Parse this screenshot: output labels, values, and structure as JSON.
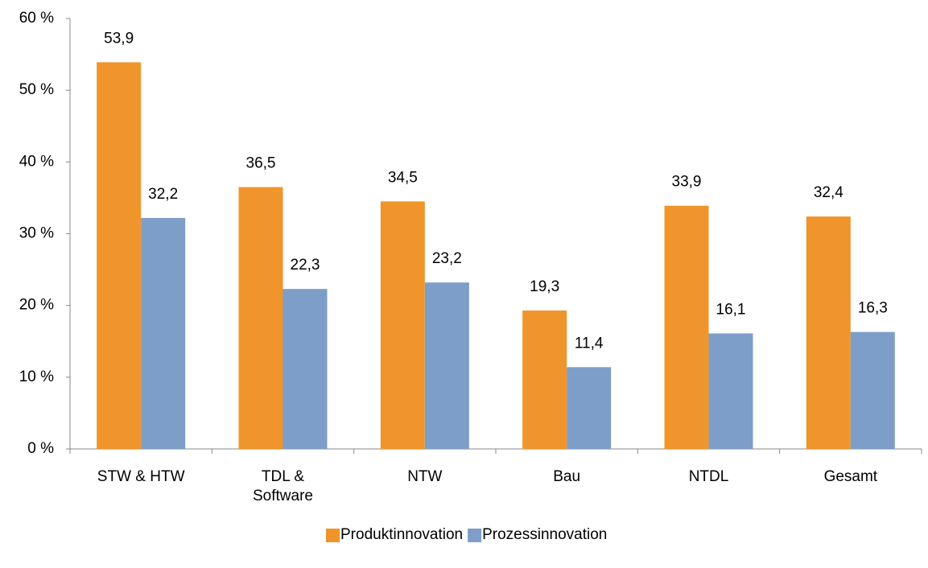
{
  "chart_data": {
    "type": "bar",
    "categories": [
      "STW & HTW",
      "TDL & Software",
      "NTW",
      "Bau",
      "NTDL",
      "Gesamt"
    ],
    "series": [
      {
        "name": "Produktinnovation",
        "color": "#f0952b",
        "values": [
          53.9,
          36.5,
          34.5,
          19.3,
          33.9,
          32.4
        ],
        "value_labels": [
          "53,9",
          "36,5",
          "34,5",
          "19,3",
          "33,9",
          "32,4"
        ]
      },
      {
        "name": "Prozessinnovation",
        "color": "#7d9ec9",
        "values": [
          32.2,
          22.3,
          23.2,
          11.4,
          16.1,
          16.3
        ],
        "value_labels": [
          "32,2",
          "22,3",
          "23,2",
          "11,4",
          "16,1",
          "16,3"
        ]
      }
    ],
    "ylim": [
      0,
      60
    ],
    "yticks": [
      {
        "value": 0,
        "label": "0 %"
      },
      {
        "value": 10,
        "label": "10 %"
      },
      {
        "value": 20,
        "label": "20 %"
      },
      {
        "value": 30,
        "label": "30 %"
      },
      {
        "value": 40,
        "label": "40 %"
      },
      {
        "value": 50,
        "label": "50 %"
      },
      {
        "value": 60,
        "label": "60 %"
      }
    ],
    "legend": "bottom",
    "grid": false
  }
}
